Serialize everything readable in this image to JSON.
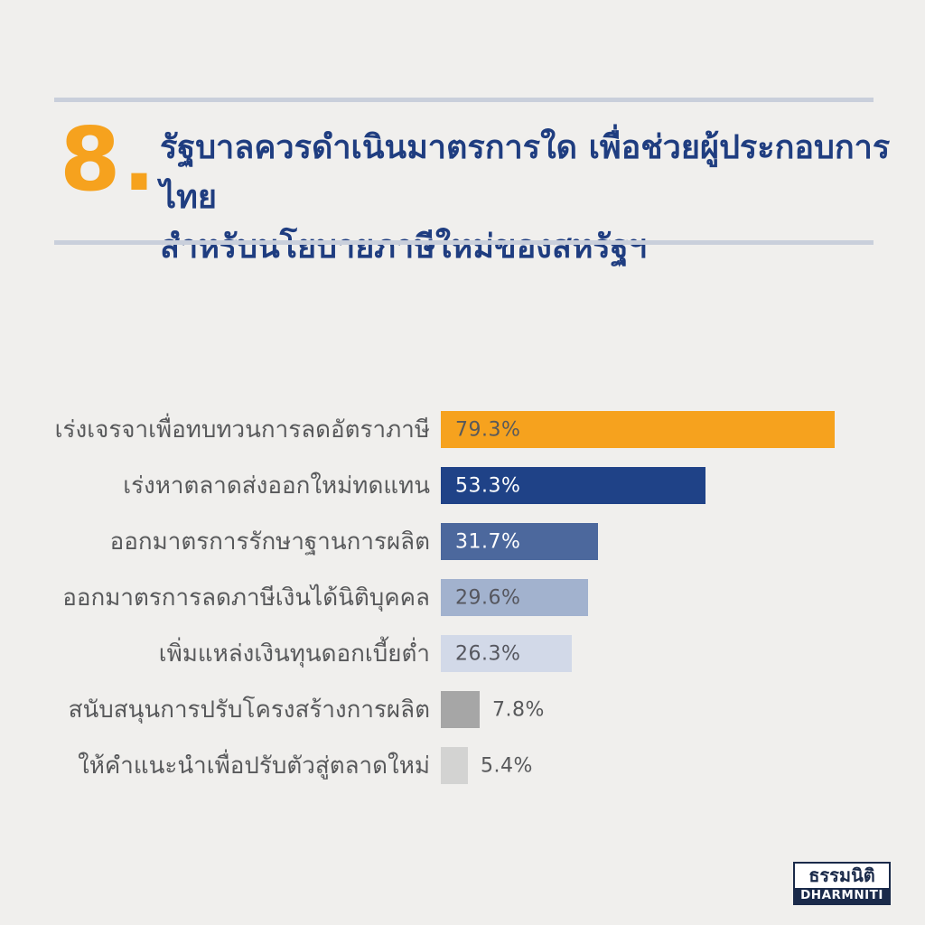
{
  "page": {
    "background_color": "#F0EFED",
    "accent_orange": "#F6A21E",
    "title_navy": "#1F3D80",
    "divider_color": "#C9CFDB",
    "body_text_color": "#58595B"
  },
  "header": {
    "question_number": "8.",
    "title_line1": "รัฐบาลควรดำเนินมาตรการใด เพื่อช่วยผู้ประกอบการไทย",
    "title_line2": "สำหรับนโยบายภาษีใหม่ของสหรัฐฯ"
  },
  "chart_data": {
    "type": "bar",
    "orientation": "horizontal",
    "title": "",
    "xlabel": "",
    "ylabel": "",
    "xlim": [
      0,
      100
    ],
    "grid": false,
    "axes_shown": false,
    "categories": [
      "เร่งเจรจาเพื่อทบทวนการลดอัตราภาษี",
      "เร่งหาตลาดส่งออกใหม่ทดแทน",
      "ออกมาตรการรักษาฐานการผลิต",
      "ออกมาตรการลดภาษีเงินได้นิติบุคคล",
      "เพิ่มแหล่งเงินทุนดอกเบี้ยต่ำ",
      "สนับสนุนการปรับโครงสร้างการผลิต",
      "ให้คำแนะนำเพื่อปรับตัวสู่ตลาดใหม่"
    ],
    "values": [
      79.3,
      53.3,
      31.7,
      29.6,
      26.3,
      7.8,
      5.4
    ],
    "value_labels": [
      "79.3%",
      "53.3%",
      "31.7%",
      "29.6%",
      "26.3%",
      "7.8%",
      "5.4%"
    ],
    "bar_colors": [
      "#F6A21E",
      "#1F4287",
      "#4C689D",
      "#A2B2CE",
      "#D2D9E8",
      "#A6A6A6",
      "#D3D3D2"
    ],
    "value_label_inside": [
      true,
      true,
      true,
      true,
      true,
      false,
      false
    ],
    "value_label_colors": [
      "#58595B",
      "#FFFFFF",
      "#FFFFFF",
      "#55565E",
      "#55565E",
      "#58595B",
      "#58595B"
    ]
  },
  "footer": {
    "logo_thai": "ธรรมนิติ",
    "logo_latin": "DHARMNITI",
    "logo_navy": "#1A2A4A"
  }
}
